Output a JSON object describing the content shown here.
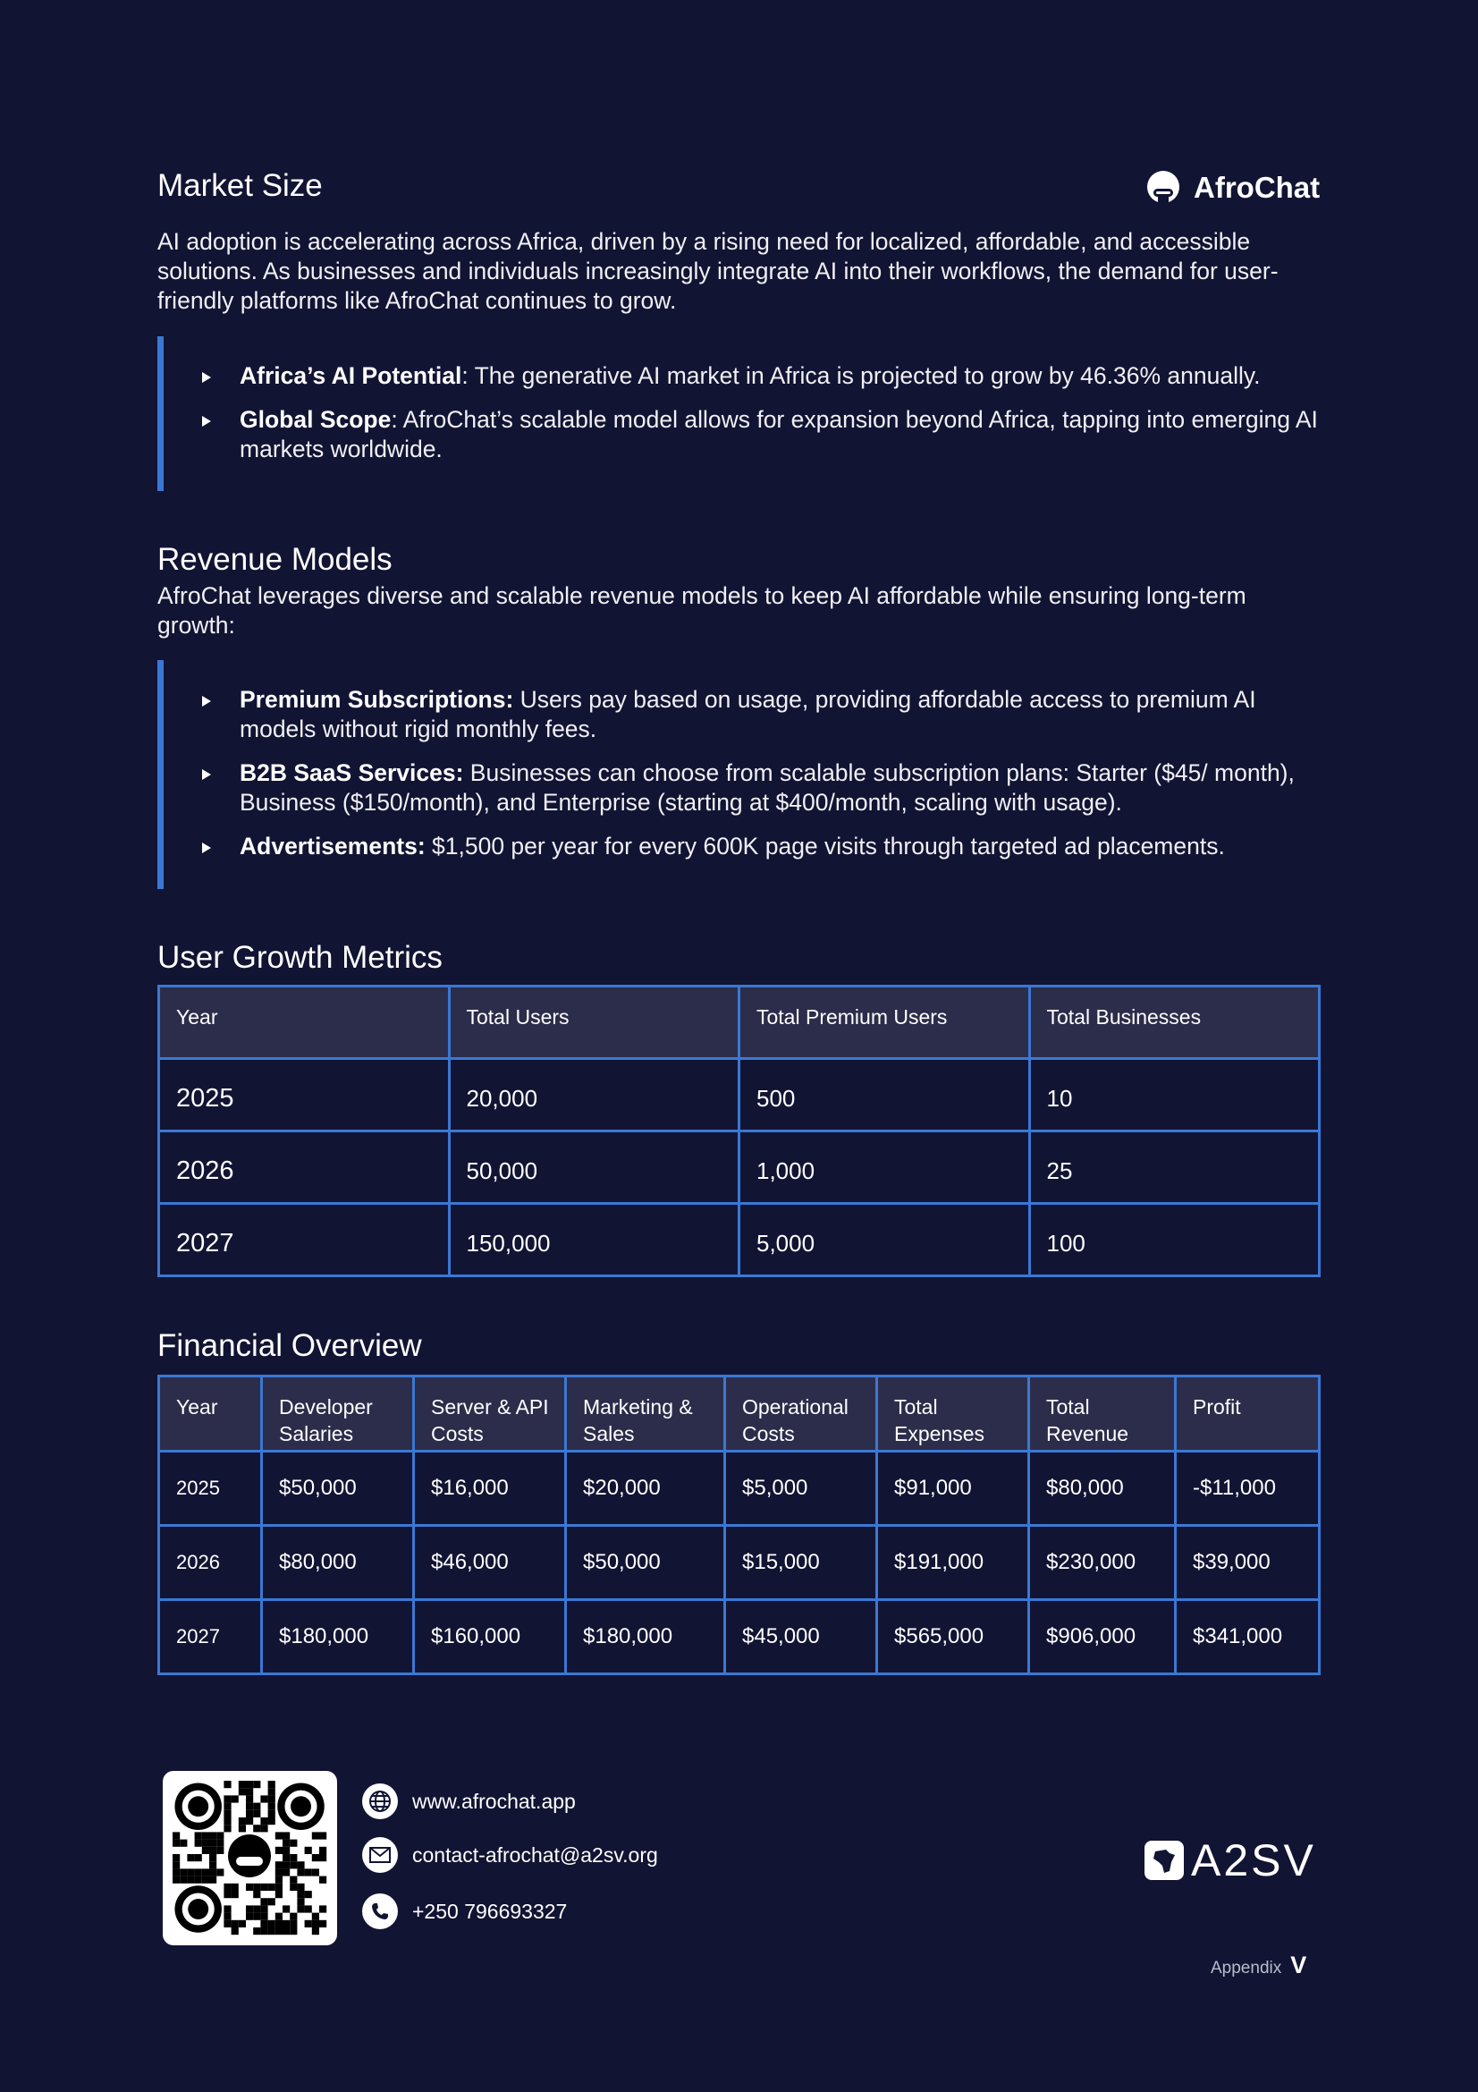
{
  "brand": {
    "name": "AfroChat",
    "logo_icon": "afrochat-robot-logo"
  },
  "market_size": {
    "title": "Market Size",
    "intro": "AI adoption is accelerating across Africa, driven by a rising need for localized, affordable, and accessible solutions. As businesses and individuals increasingly integrate AI into their workflows, the demand for user-friendly platforms like AfroChat continues to grow.",
    "bullets": [
      {
        "term": "Africa’s AI Potential",
        "text": ": The generative AI market in Africa is projected to grow by 46.36% annually."
      },
      {
        "term": "Global Scope",
        "text": ": AfroChat’s scalable model allows for expansion beyond Africa, tapping into emerging AI markets worldwide."
      }
    ]
  },
  "revenue_models": {
    "title": "Revenue Models",
    "intro": "AfroChat leverages diverse and scalable revenue models to keep AI affordable while ensuring long-term growth:",
    "bullets": [
      {
        "term": "Premium Subscriptions:",
        "text": " Users pay based on usage, providing affordable access to premium AI models without rigid monthly fees."
      },
      {
        "term": "B2B SaaS Services:",
        "text": " Businesses can choose from scalable subscription plans: Starter ($45/ month), Business ($150/month), and Enterprise (starting at $400/month, scaling with usage)."
      },
      {
        "term": "Advertisements:",
        "text": " $1,500 per year for every 600K page visits through targeted ad placements."
      }
    ]
  },
  "user_growth": {
    "title": "User Growth Metrics",
    "headers": [
      "Year",
      "Total Users",
      "Total Premium Users",
      "Total Businesses"
    ],
    "rows": [
      [
        "2025",
        "20,000",
        "500",
        "10"
      ],
      [
        "2026",
        "50,000",
        "1,000",
        "25"
      ],
      [
        "2027",
        "150,000",
        "5,000",
        "100"
      ]
    ]
  },
  "financial": {
    "title": "Financial Overview",
    "headers": [
      "Year",
      "Developer Salaries",
      "Server & API Costs",
      "Marketing & Sales",
      "Operational Costs",
      "Total Expenses",
      "Total Revenue",
      "Profit"
    ],
    "rows": [
      [
        "2025",
        "$50,000",
        "$16,000",
        "$20,000",
        "$5,000",
        "$91,000",
        "$80,000",
        "-$11,000"
      ],
      [
        "2026",
        "$80,000",
        "$46,000",
        "$50,000",
        "$15,000",
        "$191,000",
        "$230,000",
        "$39,000"
      ],
      [
        "2027",
        "$180,000",
        "$160,000",
        "$180,000",
        "$45,000",
        "$565,000",
        "$906,000",
        "$341,000"
      ]
    ]
  },
  "footer": {
    "website": "www.afrochat.app",
    "email": "contact-afrochat@a2sv.org",
    "phone": "+250 796693327",
    "partner_logo": "A2SV",
    "appendix_label": "Appendix",
    "appendix_number": "V"
  },
  "colors": {
    "background": "#121433",
    "accent": "#3a78d4",
    "table_header": "#2c2d4b"
  }
}
